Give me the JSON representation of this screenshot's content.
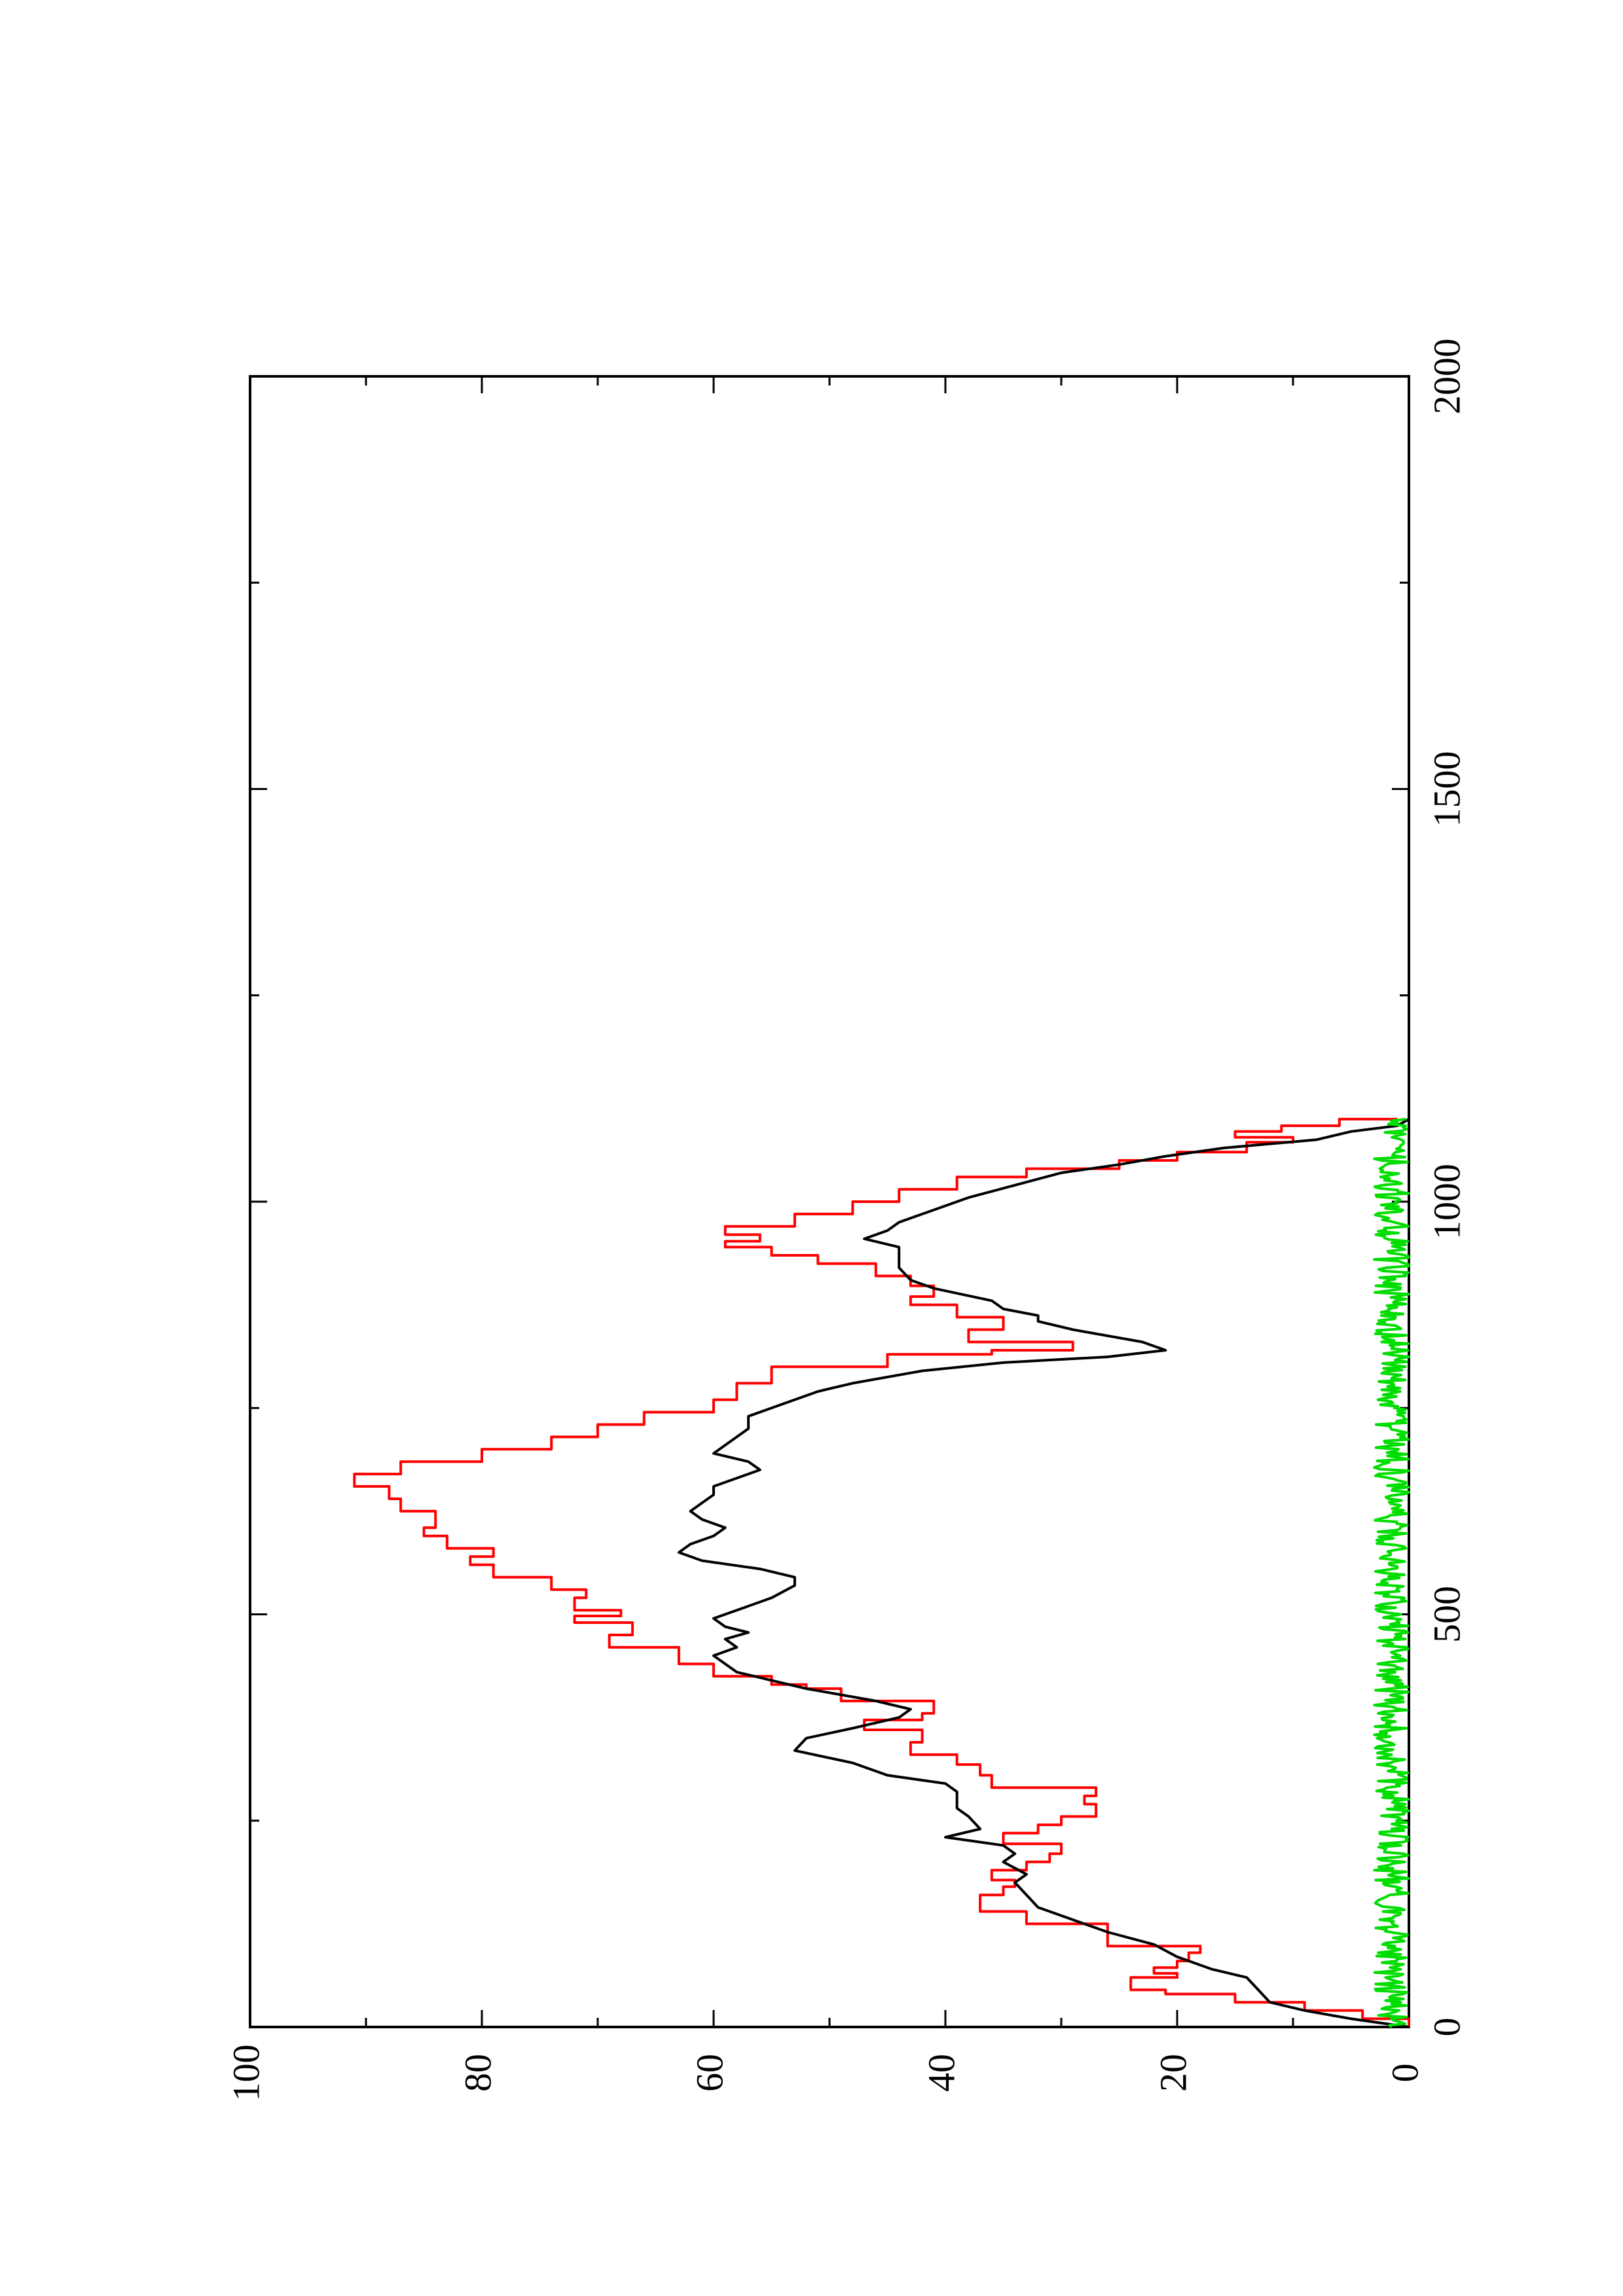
{
  "chart_data": {
    "type": "line",
    "title": "",
    "xlabel": "",
    "ylabel": "",
    "xlim": [
      0,
      2000
    ],
    "ylim": [
      0,
      100
    ],
    "grid": false,
    "legend": "none",
    "orientation": "rotated-90-ccw",
    "x_ticks": [
      0,
      500,
      1000,
      1500,
      2000
    ],
    "x_tick_labels": [
      "0",
      "500",
      "1000",
      "1500",
      "2000"
    ],
    "y_ticks": [
      0,
      20,
      40,
      60,
      80,
      100
    ],
    "y_tick_labels": [
      "0",
      "20",
      "40",
      "60",
      "80",
      "100"
    ],
    "series": [
      {
        "color": "#ff0000",
        "style": "step",
        "points": [
          [
            0,
            0
          ],
          [
            10,
            4
          ],
          [
            20,
            9
          ],
          [
            30,
            15
          ],
          [
            40,
            21
          ],
          [
            45,
            24
          ],
          [
            55,
            24
          ],
          [
            60,
            20
          ],
          [
            65,
            22
          ],
          [
            72,
            20
          ],
          [
            80,
            19
          ],
          [
            90,
            18
          ],
          [
            98,
            26
          ],
          [
            115,
            26
          ],
          [
            125,
            33
          ],
          [
            140,
            37
          ],
          [
            155,
            37
          ],
          [
            160,
            35
          ],
          [
            170,
            34
          ],
          [
            178,
            36
          ],
          [
            190,
            33
          ],
          [
            200,
            31
          ],
          [
            210,
            30
          ],
          [
            222,
            35
          ],
          [
            235,
            32
          ],
          [
            245,
            30
          ],
          [
            255,
            27
          ],
          [
            270,
            28
          ],
          [
            280,
            27
          ],
          [
            290,
            36
          ],
          [
            305,
            37
          ],
          [
            318,
            39
          ],
          [
            330,
            43
          ],
          [
            345,
            42
          ],
          [
            360,
            47
          ],
          [
            372,
            42
          ],
          [
            380,
            41
          ],
          [
            395,
            49
          ],
          [
            410,
            52
          ],
          [
            415,
            55
          ],
          [
            425,
            60
          ],
          [
            440,
            63
          ],
          [
            460,
            69
          ],
          [
            475,
            67
          ],
          [
            490,
            72
          ],
          [
            498,
            68
          ],
          [
            505,
            72
          ],
          [
            520,
            71
          ],
          [
            530,
            74
          ],
          [
            545,
            79
          ],
          [
            560,
            81
          ],
          [
            570,
            79
          ],
          [
            580,
            83
          ],
          [
            595,
            85
          ],
          [
            605,
            84
          ],
          [
            615,
            84
          ],
          [
            625,
            87
          ],
          [
            640,
            88
          ],
          [
            655,
            91
          ],
          [
            670,
            87
          ],
          [
            685,
            80
          ],
          [
            700,
            74
          ],
          [
            715,
            70
          ],
          [
            730,
            66
          ],
          [
            745,
            60
          ],
          [
            760,
            58
          ],
          [
            780,
            55
          ],
          [
            800,
            45
          ],
          [
            815,
            36
          ],
          [
            820,
            29
          ],
          [
            830,
            38
          ],
          [
            845,
            35
          ],
          [
            860,
            39
          ],
          [
            875,
            43
          ],
          [
            885,
            41
          ],
          [
            898,
            43
          ],
          [
            910,
            46
          ],
          [
            925,
            51
          ],
          [
            935,
            55
          ],
          [
            945,
            59
          ],
          [
            952,
            56
          ],
          [
            960,
            59
          ],
          [
            970,
            53
          ],
          [
            985,
            48
          ],
          [
            1000,
            44
          ],
          [
            1015,
            39
          ],
          [
            1030,
            33
          ],
          [
            1040,
            25
          ],
          [
            1050,
            20
          ],
          [
            1060,
            14
          ],
          [
            1072,
            10
          ],
          [
            1078,
            15
          ],
          [
            1085,
            11
          ],
          [
            1092,
            6
          ],
          [
            1100,
            1
          ]
        ]
      },
      {
        "color": "#000000",
        "style": "line",
        "points": [
          [
            0,
            0
          ],
          [
            10,
            5
          ],
          [
            20,
            9
          ],
          [
            30,
            12
          ],
          [
            45,
            13
          ],
          [
            60,
            14
          ],
          [
            70,
            17
          ],
          [
            85,
            20
          ],
          [
            100,
            22
          ],
          [
            115,
            26
          ],
          [
            130,
            29
          ],
          [
            145,
            32
          ],
          [
            160,
            33
          ],
          [
            175,
            34
          ],
          [
            185,
            33
          ],
          [
            200,
            35
          ],
          [
            210,
            34
          ],
          [
            220,
            35
          ],
          [
            230,
            40
          ],
          [
            240,
            37
          ],
          [
            255,
            38
          ],
          [
            265,
            39
          ],
          [
            275,
            39
          ],
          [
            285,
            39
          ],
          [
            295,
            40
          ],
          [
            305,
            45
          ],
          [
            320,
            48
          ],
          [
            335,
            53
          ],
          [
            350,
            52
          ],
          [
            362,
            48
          ],
          [
            375,
            44
          ],
          [
            385,
            43
          ],
          [
            395,
            46
          ],
          [
            410,
            52
          ],
          [
            420,
            55
          ],
          [
            430,
            58
          ],
          [
            440,
            59
          ],
          [
            450,
            60
          ],
          [
            460,
            58
          ],
          [
            470,
            59
          ],
          [
            478,
            57
          ],
          [
            485,
            59
          ],
          [
            495,
            60
          ],
          [
            505,
            58
          ],
          [
            520,
            55
          ],
          [
            535,
            53
          ],
          [
            545,
            53
          ],
          [
            555,
            56
          ],
          [
            565,
            61
          ],
          [
            575,
            63
          ],
          [
            585,
            62
          ],
          [
            595,
            60
          ],
          [
            605,
            59
          ],
          [
            615,
            61
          ],
          [
            625,
            62
          ],
          [
            635,
            61
          ],
          [
            645,
            60
          ],
          [
            655,
            60
          ],
          [
            665,
            58
          ],
          [
            675,
            56
          ],
          [
            685,
            57
          ],
          [
            695,
            60
          ],
          [
            705,
            59
          ],
          [
            715,
            58
          ],
          [
            725,
            57
          ],
          [
            740,
            57
          ],
          [
            755,
            54
          ],
          [
            770,
            51
          ],
          [
            780,
            48
          ],
          [
            795,
            42
          ],
          [
            805,
            35
          ],
          [
            812,
            26
          ],
          [
            820,
            21
          ],
          [
            830,
            23
          ],
          [
            845,
            29
          ],
          [
            855,
            32
          ],
          [
            862,
            32
          ],
          [
            870,
            35
          ],
          [
            880,
            36
          ],
          [
            895,
            41
          ],
          [
            905,
            43
          ],
          [
            920,
            44
          ],
          [
            935,
            44
          ],
          [
            945,
            44
          ],
          [
            955,
            47
          ],
          [
            965,
            45
          ],
          [
            975,
            44
          ],
          [
            990,
            41
          ],
          [
            1005,
            38
          ],
          [
            1020,
            34
          ],
          [
            1035,
            30
          ],
          [
            1045,
            25
          ],
          [
            1055,
            21
          ],
          [
            1065,
            16
          ],
          [
            1075,
            8
          ],
          [
            1085,
            5
          ],
          [
            1092,
            1
          ],
          [
            1100,
            0
          ]
        ]
      },
      {
        "color": "#00dd00",
        "style": "line",
        "noise_band": [
          0,
          3
        ],
        "x_range": [
          0,
          1100
        ]
      }
    ]
  }
}
